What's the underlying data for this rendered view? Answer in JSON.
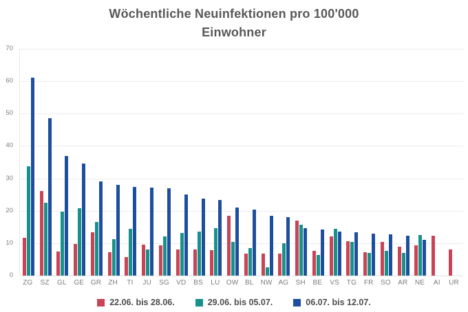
{
  "title_lines": [
    "Wöchentliche Neuinfektionen pro 100'000",
    "Einwohner"
  ],
  "colors": {
    "series_red": "#c84456",
    "series_teal": "#17918a",
    "series_blue": "#1d4f9e",
    "title_text": "#58585a",
    "axis_text": "#7c7c7c",
    "legend_text": "#4d4d4d",
    "gridline": "#ededed"
  },
  "chart_data": {
    "type": "bar",
    "title": "Wöchentliche Neuinfektionen pro 100'000 Einwohner",
    "xlabel": "",
    "ylabel": "",
    "ylim": [
      0,
      70
    ],
    "yticks": [
      0,
      10,
      20,
      30,
      40,
      50,
      60,
      70
    ],
    "grid": true,
    "legend_position": "bottom",
    "categories": [
      "ZG",
      "SZ",
      "GL",
      "GE",
      "GR",
      "ZH",
      "TI",
      "JU",
      "SG",
      "VD",
      "BS",
      "LU",
      "OW",
      "BL",
      "NW",
      "AG",
      "SH",
      "BE",
      "VS",
      "TG",
      "FR",
      "SO",
      "AR",
      "NE",
      "AI",
      "UR"
    ],
    "series": [
      {
        "name": "22.06. bis 28.06.",
        "color": "#c84456",
        "values": [
          11.7,
          26.2,
          7.4,
          9.8,
          13.3,
          7.3,
          5.8,
          9.6,
          9.3,
          8.0,
          8.1,
          7.8,
          18.4,
          6.8,
          6.9,
          6.8,
          17.0,
          7.7,
          12.1,
          10.6,
          7.3,
          10.5,
          9.0,
          9.3,
          12.4,
          8.0
        ]
      },
      {
        "name": "29.06. bis 05.07.",
        "color": "#17918a",
        "values": [
          33.8,
          22.5,
          19.8,
          20.9,
          16.5,
          11.2,
          14.4,
          8.1,
          12.1,
          13.1,
          13.5,
          14.6,
          10.5,
          8.6,
          2.5,
          9.9,
          15.8,
          6.4,
          14.4,
          10.4,
          7.1,
          7.6,
          7.1,
          12.6,
          null,
          null
        ]
      },
      {
        "name": "06.07. bis 12.07.",
        "color": "#1d4f9e",
        "values": [
          61.1,
          48.6,
          37.0,
          34.5,
          29.1,
          28.0,
          27.3,
          27.1,
          26.9,
          25.1,
          23.8,
          23.3,
          21.1,
          20.4,
          18.5,
          18.0,
          14.6,
          14.2,
          13.6,
          13.3,
          13.0,
          12.7,
          12.4,
          11.0,
          null,
          null
        ]
      }
    ]
  }
}
